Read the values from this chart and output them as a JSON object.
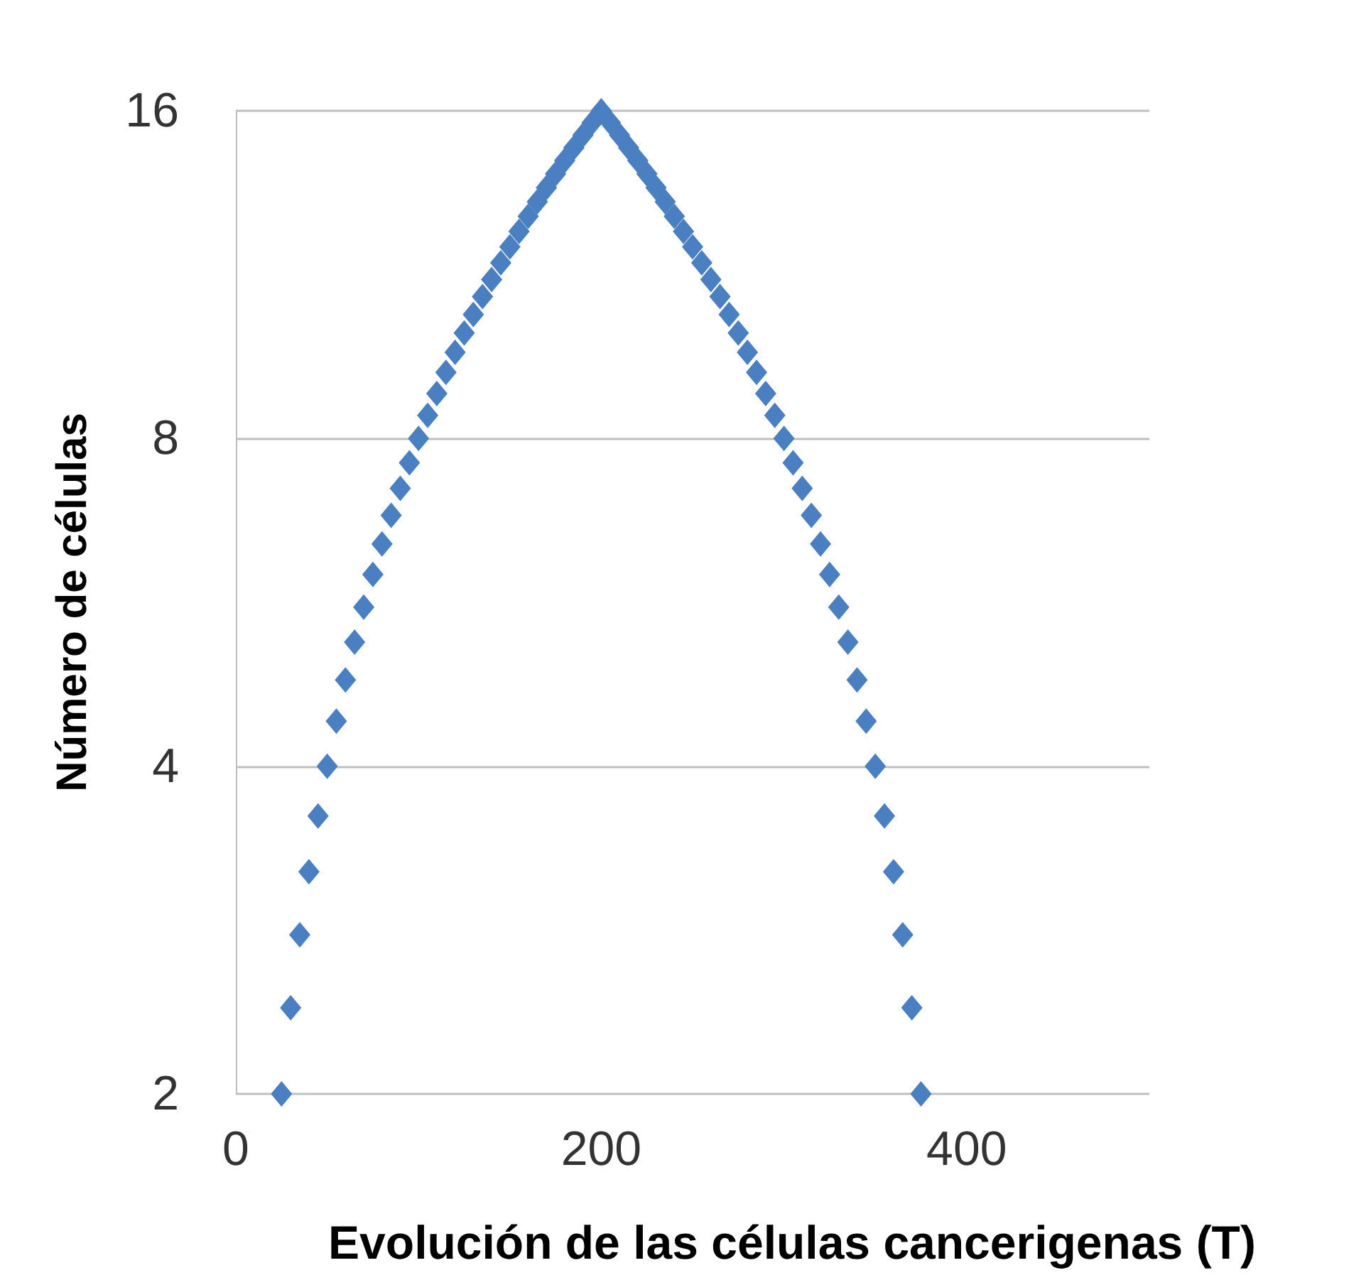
{
  "chart_data": {
    "type": "scatter",
    "xlabel": "Evolución de las células cancerigenas (T)",
    "ylabel": "Número de células",
    "log": "y",
    "grid": "y",
    "marker": "diamond",
    "xlim": [
      0,
      500
    ],
    "xticks": [
      0,
      200,
      400
    ],
    "ylim": [
      2,
      16
    ],
    "yticks": [
      2,
      4,
      8,
      16
    ],
    "series": [
      {
        "color": "#4a7fc1",
        "x": [
          25,
          30,
          35,
          40,
          45,
          50,
          55,
          60,
          65,
          70,
          75,
          80,
          85,
          90,
          95,
          100,
          105,
          110,
          115,
          120,
          125,
          130,
          135,
          140,
          145,
          150,
          155,
          160,
          165,
          170,
          175,
          180,
          185,
          190,
          195,
          200,
          205,
          210,
          215,
          220,
          225,
          230,
          235,
          240,
          245,
          250,
          255,
          260,
          265,
          270,
          275,
          280,
          285,
          290,
          295,
          300,
          305,
          310,
          315,
          320,
          325,
          330,
          335,
          340,
          345,
          350,
          355,
          360,
          365,
          370,
          375
        ],
        "values": [
          2,
          2.4,
          2.8,
          3.2,
          3.6,
          4,
          4.4,
          4.8,
          5.2,
          5.6,
          6,
          6.4,
          6.8,
          7.2,
          7.6,
          8,
          8.4,
          8.8,
          9.2,
          9.6,
          10,
          10.4,
          10.8,
          11.2,
          11.6,
          12,
          12.4,
          12.8,
          13.2,
          13.6,
          14,
          14.4,
          14.8,
          15.2,
          15.6,
          16,
          15.6,
          15.2,
          14.8,
          14.4,
          14,
          13.6,
          13.2,
          12.8,
          12.4,
          12,
          11.6,
          11.2,
          10.8,
          10.4,
          10,
          9.6,
          9.2,
          8.8,
          8.4,
          8,
          7.6,
          7.2,
          6.8,
          6.4,
          6,
          5.6,
          5.2,
          4.8,
          4.4,
          4,
          3.6,
          3.2,
          2.8,
          2.4,
          2
        ]
      }
    ]
  }
}
